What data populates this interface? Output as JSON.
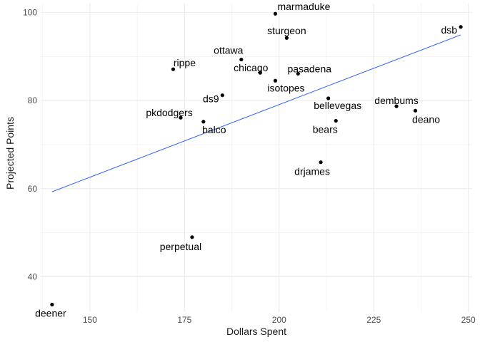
{
  "chart_data": {
    "type": "scatter",
    "xlabel": "Dollars Spent",
    "ylabel": "Projected Points",
    "xlim": [
      137,
      251
    ],
    "ylim": [
      32,
      102
    ],
    "xticks": [
      150,
      175,
      200,
      225,
      250
    ],
    "yticks": [
      40,
      60,
      80,
      100
    ],
    "grid": true,
    "colors": {
      "point": "#000000",
      "trend": "#3366ff",
      "grid": "#ebebeb"
    },
    "points": [
      {
        "label": "marmaduke",
        "x": 199,
        "y": 99.7
      },
      {
        "label": "sturgeon",
        "x": 202,
        "y": 94.2
      },
      {
        "label": "dsb",
        "x": 248,
        "y": 96.7
      },
      {
        "label": "ottawa",
        "x": 190,
        "y": 89.3
      },
      {
        "label": "chicago",
        "x": 195,
        "y": 86.3
      },
      {
        "label": "pasadena",
        "x": 205,
        "y": 86.1
      },
      {
        "label": "rippe",
        "x": 172,
        "y": 87.1
      },
      {
        "label": "isotopes",
        "x": 199,
        "y": 84.5
      },
      {
        "label": "ds9",
        "x": 185,
        "y": 81.2
      },
      {
        "label": "bellevegas",
        "x": 213,
        "y": 80.5
      },
      {
        "label": "dembums",
        "x": 231,
        "y": 78.7
      },
      {
        "label": "deano",
        "x": 236,
        "y": 77.7
      },
      {
        "label": "pkdodgers",
        "x": 174,
        "y": 76.1
      },
      {
        "label": "balco",
        "x": 180,
        "y": 75.2
      },
      {
        "label": "bears",
        "x": 215,
        "y": 75.4
      },
      {
        "label": "drjames",
        "x": 211,
        "y": 66.0
      },
      {
        "label": "perpetual",
        "x": 177,
        "y": 49.0
      },
      {
        "label": "deener",
        "x": 140,
        "y": 33.7
      }
    ],
    "trendline": {
      "x": [
        140,
        248
      ],
      "y": [
        59.3,
        94.9
      ]
    }
  }
}
